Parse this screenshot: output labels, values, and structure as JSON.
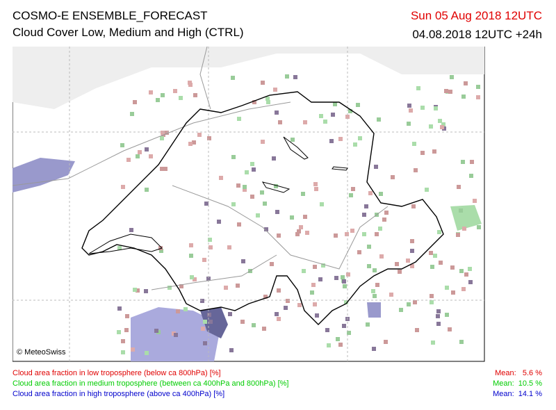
{
  "header": {
    "title": "COSMO-E ENSEMBLE_FORECAST",
    "subtitle": "Cloud Cover Low, Medium and High (CTRL)",
    "valid_time": "Sun 05 Aug 2018 12UTC",
    "run_time": "04.08.2018 12UTC +24h"
  },
  "map": {
    "credit": "© MeteoSwiss"
  },
  "legend": [
    {
      "text": "Cloud area fraction in low troposphere (below ca 800hPa) [%]",
      "mean": "Mean:   5.6 %"
    },
    {
      "text": "Cloud area fraction in medium troposphere (between ca 400hPa and 800hPa) [%]",
      "mean": "Mean:  10.5 %"
    },
    {
      "text": "Cloud area fraction in high troposphere (above ca 400hPa) [%]",
      "mean": "Mean:  14.1 %"
    }
  ]
}
